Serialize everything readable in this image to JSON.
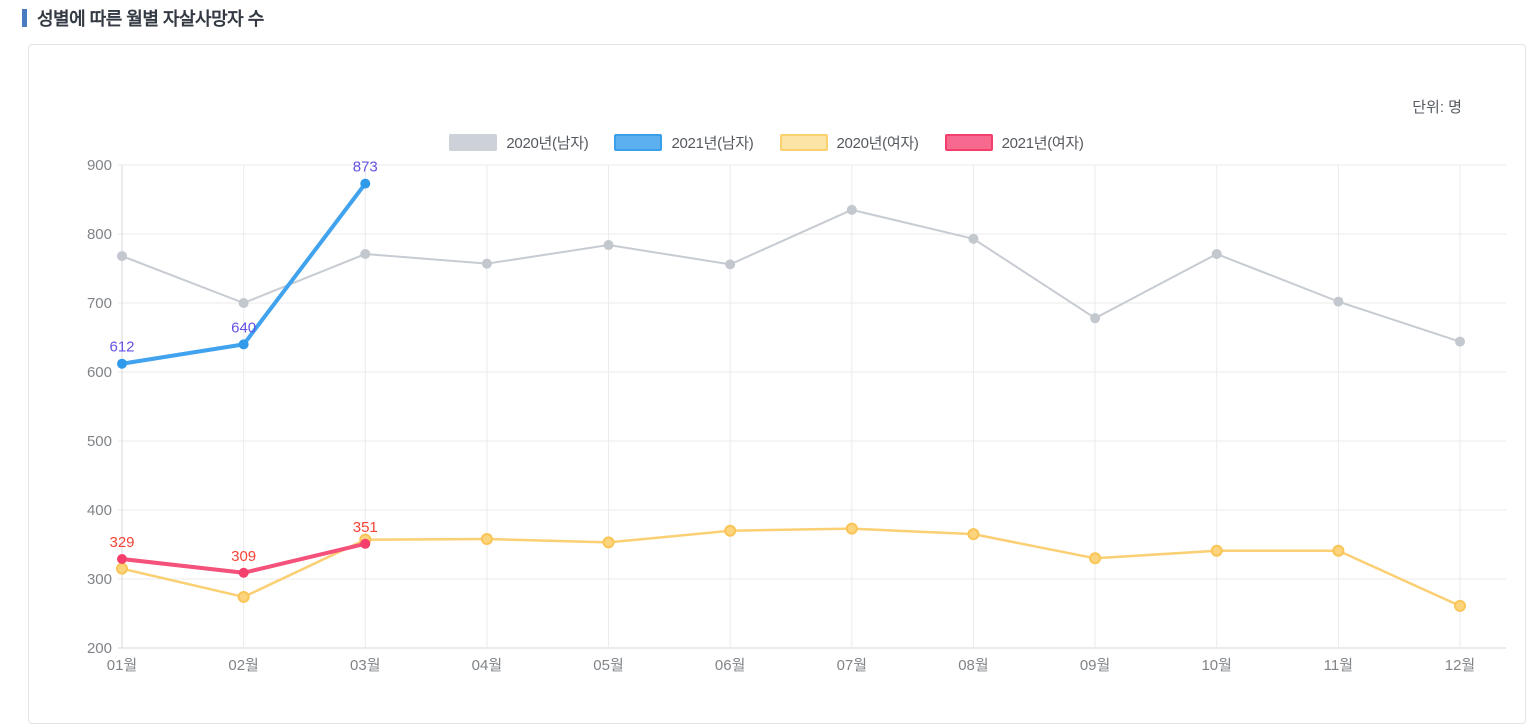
{
  "header": {
    "title": "성별에 따른 월별 자살사망자 수"
  },
  "panel": {
    "unit_label": "단위: 명"
  },
  "chart_data": {
    "type": "line",
    "title": "성별에 따른 월별 자살사망자 수",
    "unit": "명",
    "categories": [
      "01월",
      "02월",
      "03월",
      "04월",
      "05월",
      "06월",
      "07월",
      "08월",
      "09월",
      "10월",
      "11월",
      "12월"
    ],
    "ylim": [
      200,
      900
    ],
    "ytick_step": 100,
    "grid": true,
    "legend_position": "top",
    "axis_text_color": "#808488",
    "grid_color": "#ebebee",
    "axis_line_color": "#d6d7da",
    "series": [
      {
        "name": "2020년(남자)",
        "values": [
          768,
          700,
          771,
          757,
          784,
          756,
          835,
          793,
          678,
          771,
          702,
          644
        ],
        "line_color": "#c7cbd2",
        "line_width": 2,
        "point_fill": "#c3c7ce",
        "point_stroke": "",
        "swatch_fill": "#cdd1d8",
        "swatch_border": "#cdd1d8",
        "show_labels": false,
        "label_color": ""
      },
      {
        "name": "2021년(남자)",
        "values": [
          612,
          640,
          873
        ],
        "line_color": "#41a3ee",
        "line_width": 4,
        "point_fill": "#2f9aea",
        "point_stroke": "",
        "swatch_fill": "#5db0f0",
        "swatch_border": "#3b9ee8",
        "show_labels": true,
        "label_color": "#6352e4"
      },
      {
        "name": "2020년(여자)",
        "values": [
          315,
          274,
          357,
          358,
          353,
          370,
          373,
          365,
          330,
          341,
          341,
          261
        ],
        "line_color": "#fbcf73",
        "line_width": 2.5,
        "point_fill": "#fcd47e",
        "point_stroke": "#f9c557",
        "swatch_fill": "#fce4a6",
        "swatch_border": "#fbd06f",
        "show_labels": false,
        "label_color": ""
      },
      {
        "name": "2021년(여자)",
        "values": [
          329,
          309,
          351
        ],
        "line_color": "#f4517b",
        "line_width": 4,
        "point_fill": "#f43f6d",
        "point_stroke": "",
        "swatch_fill": "#f7698f",
        "swatch_border": "#f43f6d",
        "show_labels": true,
        "label_color": "#f44336"
      }
    ]
  }
}
